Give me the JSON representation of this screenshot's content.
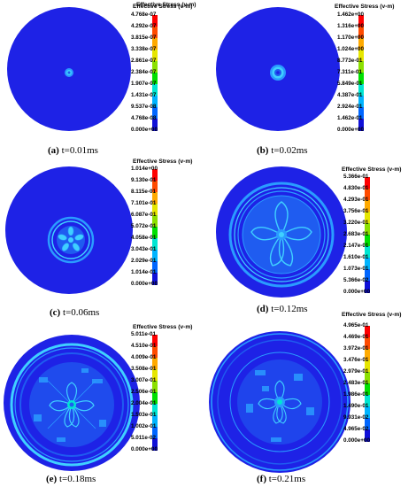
{
  "colors": {
    "background": "#1e22e6",
    "ring_light": "#2a9cff",
    "ring_cyan": "#3fd0ff",
    "ring_mid": "#1f5cf0",
    "scale": [
      "#1010d8",
      "#0066ff",
      "#00b4ff",
      "#00e6d2",
      "#00e000",
      "#8ce000",
      "#e6e600",
      "#ffaa00",
      "#ff4b00",
      "#ff0000"
    ]
  },
  "panels": [
    {
      "caption_letter": "(a)",
      "caption_time": "t=0.01ms",
      "colorbar_title": "Effective Stress (v-m)",
      "ticks": [
        "4.768e-07",
        "4.292e-07",
        "3.815e-07",
        "3.338e-07",
        "2.861e-07",
        "2.384e-07",
        "1.907e-07",
        "1.431e-07",
        "9.537e-08",
        "4.768e-08",
        "0.000e+00"
      ]
    },
    {
      "caption_letter": "(b)",
      "caption_time": "t=0.02ms",
      "colorbar_title": "Effective Stress (v-m)",
      "ticks": [
        "1.462e+00",
        "1.316e+00",
        "1.170e+00",
        "1.024e+00",
        "8.773e-01",
        "7.311e-01",
        "5.849e-01",
        "4.387e-01",
        "2.924e-01",
        "1.462e-01",
        "0.000e+00"
      ]
    },
    {
      "caption_letter": "(c)",
      "caption_time": "t=0.06ms",
      "colorbar_title": "Effective Stress (v-m)",
      "ticks": [
        "1.014e+00",
        "9.130e-01",
        "8.115e-01",
        "7.101e-01",
        "6.087e-01",
        "5.072e-01",
        "4.058e-01",
        "3.043e-01",
        "2.029e-01",
        "1.014e-01",
        "0.000e+00"
      ]
    },
    {
      "caption_letter": "(d)",
      "caption_time": "t=0.12ms",
      "colorbar_title": "Effective Stress (v-m)",
      "ticks": [
        "5.366e-01",
        "4.830e-01",
        "4.293e-01",
        "3.756e-01",
        "3.220e-01",
        "2.683e-01",
        "2.147e-01",
        "1.610e-01",
        "1.073e-01",
        "5.366e-02",
        "0.000e+00"
      ]
    },
    {
      "caption_letter": "(e)",
      "caption_time": "t=0.18ms",
      "colorbar_title": "Effective Stress (v-m)",
      "ticks": [
        "5.011e-01",
        "4.510e-01",
        "4.009e-01",
        "3.508e-01",
        "3.007e-01",
        "2.506e-01",
        "2.004e-01",
        "1.503e-01",
        "1.002e-01",
        "5.011e-02",
        "0.000e+00"
      ]
    },
    {
      "caption_letter": "(f)",
      "caption_time": "t=0.21ms",
      "colorbar_title": "Effective Stress (v-m)",
      "ticks": [
        "4.965e-01",
        "4.469e-01",
        "3.972e-01",
        "3.476e-01",
        "2.979e-01",
        "2.483e-01",
        "1.986e-01",
        "1.490e-01",
        "9.931e-02",
        "4.965e-02",
        "0.000e+00"
      ]
    }
  ]
}
